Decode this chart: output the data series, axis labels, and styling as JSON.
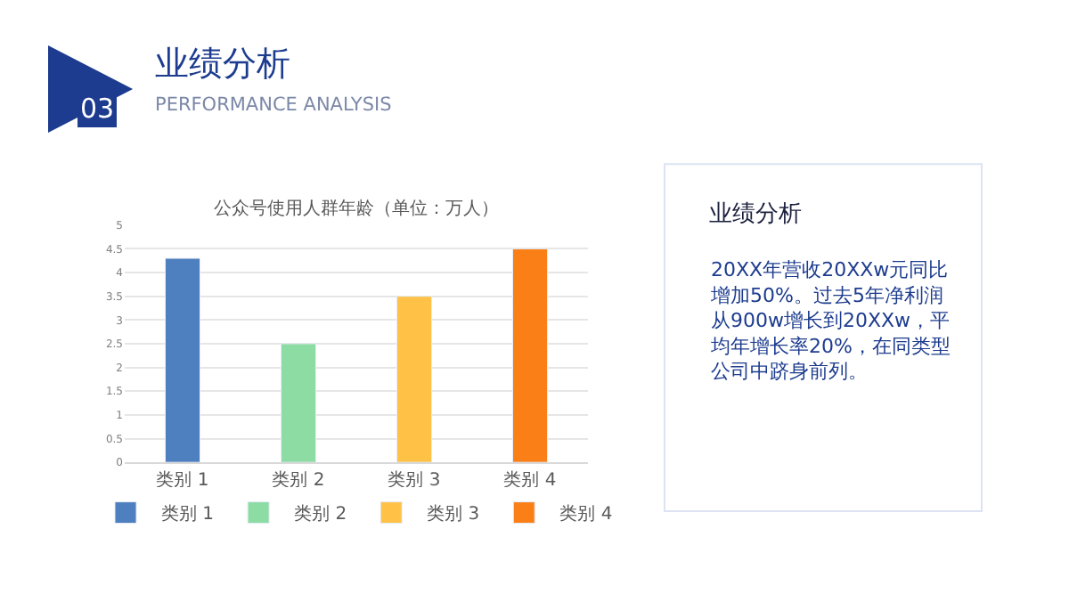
{
  "chart_data": [
    {
      "type": "other",
      "title": "业绩分析",
      "subtitle": "PERFORMANCE ANALYSIS",
      "annotations": [
        "03"
      ]
    },
    {
      "type": "bar",
      "title": "公众号使用人群年龄（单位：万人）",
      "categories": [
        "类别 1",
        "类别 2",
        "类别 3",
        "类别 4"
      ],
      "series": [
        {
          "name": "类别 1",
          "color": "#4e7fbe",
          "values": [
            4.3,
            null,
            null,
            null
          ]
        },
        {
          "name": "类别 2",
          "color": "#8cdca4",
          "values": [
            null,
            2.5,
            null,
            null
          ]
        },
        {
          "name": "类别 3",
          "color": "#ffc247",
          "values": [
            null,
            null,
            3.5,
            null
          ]
        },
        {
          "name": "类别 4",
          "color": "#fa7f17",
          "values": [
            null,
            null,
            null,
            4.5
          ]
        }
      ],
      "ylim": [
        0,
        5
      ],
      "yticks": [
        0,
        0.5,
        1,
        1.5,
        2,
        2.5,
        3,
        3.5,
        4,
        4.5,
        5
      ],
      "grid": "y",
      "legend": "bottom"
    },
    {
      "type": "other",
      "title": "业绩分析",
      "annotations": [
        "20XX年营收20XXw元同比增加50%。过去5年净利润从900w增长到20XXw，平均年增长率20%，在同类型公司中跻身前列。"
      ]
    }
  ]
}
